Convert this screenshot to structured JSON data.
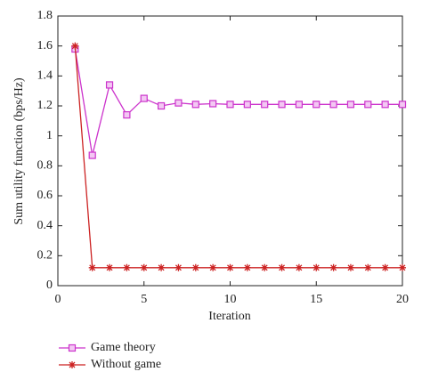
{
  "chart_data": {
    "type": "line",
    "x_label": "Iteration",
    "y_label": "Sum utility function (bps/Hz)",
    "x": [
      1,
      2,
      3,
      4,
      5,
      6,
      7,
      8,
      9,
      10,
      11,
      12,
      13,
      14,
      15,
      16,
      17,
      18,
      19,
      20
    ],
    "series": [
      {
        "name": "Game theory",
        "color": "#cc33cc",
        "marker": "square",
        "values": [
          1.58,
          0.87,
          1.34,
          1.14,
          1.25,
          1.2,
          1.22,
          1.21,
          1.215,
          1.21,
          1.21,
          1.21,
          1.21,
          1.21,
          1.21,
          1.21,
          1.21,
          1.21,
          1.21,
          1.21
        ]
      },
      {
        "name": "Without game",
        "color": "#cc2222",
        "marker": "star",
        "values": [
          1.6,
          0.12,
          0.12,
          0.12,
          0.12,
          0.12,
          0.12,
          0.12,
          0.12,
          0.12,
          0.12,
          0.12,
          0.12,
          0.12,
          0.12,
          0.12,
          0.12,
          0.12,
          0.12,
          0.12
        ]
      }
    ],
    "xlim": [
      0,
      20
    ],
    "xticks": [
      0,
      5,
      10,
      15,
      20
    ],
    "ylim": [
      0,
      1.8
    ],
    "yticks": [
      0,
      0.2,
      0.4,
      0.6,
      0.8,
      1,
      1.2,
      1.4,
      1.6,
      1.8
    ],
    "grid": false,
    "legend": "below"
  }
}
